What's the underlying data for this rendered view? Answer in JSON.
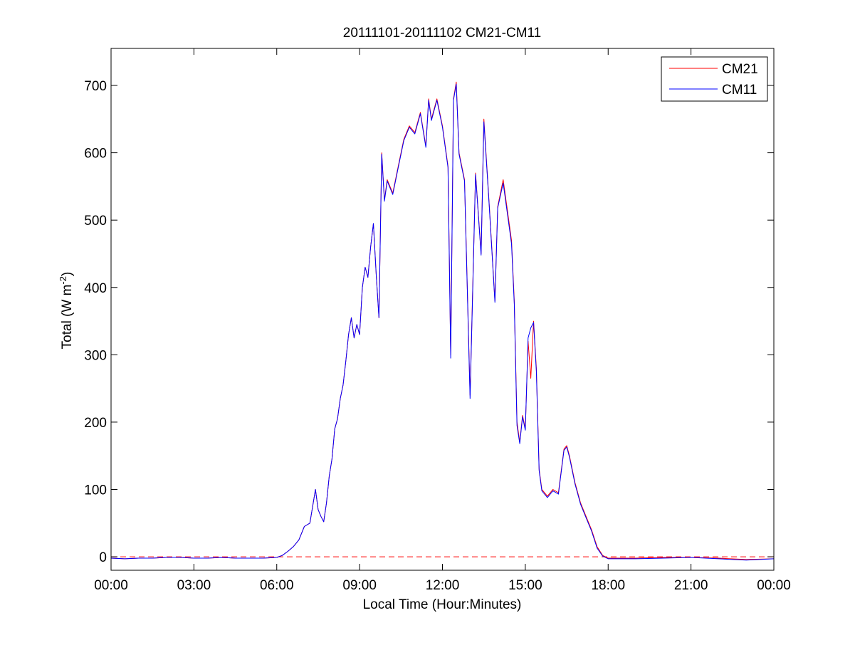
{
  "chart_data": {
    "type": "line",
    "title": "20111101-20111102 CM21-CM11",
    "xlabel": "Local Time (Hour:Minutes)",
    "ylabel_main": "Total (W m",
    "ylabel_sup": "-2",
    "ylabel_close": ")",
    "xlim_hours": [
      0,
      24
    ],
    "ylim": [
      -20,
      755
    ],
    "x_ticks": [
      {
        "hour": 0,
        "label": "00:00"
      },
      {
        "hour": 3,
        "label": "03:00"
      },
      {
        "hour": 6,
        "label": "06:00"
      },
      {
        "hour": 9,
        "label": "09:00"
      },
      {
        "hour": 12,
        "label": "12:00"
      },
      {
        "hour": 15,
        "label": "15:00"
      },
      {
        "hour": 18,
        "label": "18:00"
      },
      {
        "hour": 21,
        "label": "21:00"
      },
      {
        "hour": 24,
        "label": "00:00"
      }
    ],
    "y_ticks": [
      0,
      100,
      200,
      300,
      400,
      500,
      600,
      700
    ],
    "reference_line": {
      "y": 0,
      "color": "#ff0000",
      "style": "dashed"
    },
    "legend_position": "top-right",
    "grid": false,
    "series": [
      {
        "name": "CM21",
        "color": "#ff0000",
        "points": [
          [
            0,
            -2
          ],
          [
            0.5,
            -3
          ],
          [
            1,
            -2
          ],
          [
            1.5,
            -2
          ],
          [
            2,
            -1
          ],
          [
            2.5,
            -1
          ],
          [
            3,
            -2
          ],
          [
            3.5,
            -2
          ],
          [
            4,
            -1
          ],
          [
            4.5,
            -2
          ],
          [
            5,
            -2
          ],
          [
            5.5,
            -2
          ],
          [
            6,
            -1
          ],
          [
            6.2,
            2
          ],
          [
            6.4,
            8
          ],
          [
            6.6,
            15
          ],
          [
            6.8,
            25
          ],
          [
            7,
            45
          ],
          [
            7.2,
            50
          ],
          [
            7.4,
            100
          ],
          [
            7.5,
            70
          ],
          [
            7.6,
            60
          ],
          [
            7.7,
            52
          ],
          [
            7.8,
            80
          ],
          [
            7.9,
            120
          ],
          [
            8,
            145
          ],
          [
            8.1,
            190
          ],
          [
            8.2,
            205
          ],
          [
            8.3,
            235
          ],
          [
            8.4,
            255
          ],
          [
            8.5,
            290
          ],
          [
            8.6,
            330
          ],
          [
            8.7,
            355
          ],
          [
            8.8,
            325
          ],
          [
            8.9,
            345
          ],
          [
            9,
            330
          ],
          [
            9.1,
            400
          ],
          [
            9.2,
            430
          ],
          [
            9.3,
            415
          ],
          [
            9.4,
            460
          ],
          [
            9.5,
            495
          ],
          [
            9.6,
            420
          ],
          [
            9.7,
            355
          ],
          [
            9.8,
            600
          ],
          [
            9.9,
            530
          ],
          [
            10,
            560
          ],
          [
            10.2,
            540
          ],
          [
            10.4,
            580
          ],
          [
            10.6,
            620
          ],
          [
            10.8,
            640
          ],
          [
            11,
            630
          ],
          [
            11.2,
            660
          ],
          [
            11.4,
            610
          ],
          [
            11.5,
            680
          ],
          [
            11.6,
            650
          ],
          [
            11.8,
            680
          ],
          [
            12,
            640
          ],
          [
            12.2,
            580
          ],
          [
            12.3,
            300
          ],
          [
            12.4,
            680
          ],
          [
            12.5,
            705
          ],
          [
            12.6,
            600
          ],
          [
            12.8,
            560
          ],
          [
            13,
            240
          ],
          [
            13.2,
            570
          ],
          [
            13.4,
            450
          ],
          [
            13.5,
            650
          ],
          [
            13.7,
            520
          ],
          [
            13.9,
            380
          ],
          [
            14,
            520
          ],
          [
            14.2,
            560
          ],
          [
            14.4,
            500
          ],
          [
            14.5,
            470
          ],
          [
            14.6,
            380
          ],
          [
            14.7,
            200
          ],
          [
            14.8,
            170
          ],
          [
            14.9,
            210
          ],
          [
            15,
            190
          ],
          [
            15.1,
            320
          ],
          [
            15.2,
            265
          ],
          [
            15.3,
            350
          ],
          [
            15.4,
            280
          ],
          [
            15.5,
            130
          ],
          [
            15.6,
            100
          ],
          [
            15.8,
            90
          ],
          [
            16,
            100
          ],
          [
            16.2,
            95
          ],
          [
            16.4,
            160
          ],
          [
            16.5,
            165
          ],
          [
            16.6,
            150
          ],
          [
            16.8,
            110
          ],
          [
            17,
            80
          ],
          [
            17.2,
            60
          ],
          [
            17.4,
            40
          ],
          [
            17.6,
            15
          ],
          [
            17.8,
            2
          ],
          [
            18,
            -2
          ],
          [
            19,
            -2
          ],
          [
            20,
            -1
          ],
          [
            21,
            -1
          ],
          [
            22,
            -2
          ],
          [
            23,
            -4
          ],
          [
            24,
            -3
          ]
        ]
      },
      {
        "name": "CM11",
        "color": "#0000ff",
        "points": [
          [
            0,
            -2
          ],
          [
            0.5,
            -3
          ],
          [
            1,
            -2
          ],
          [
            1.5,
            -2
          ],
          [
            2,
            -1
          ],
          [
            2.5,
            -1
          ],
          [
            3,
            -2
          ],
          [
            3.5,
            -2
          ],
          [
            4,
            -1
          ],
          [
            4.5,
            -2
          ],
          [
            5,
            -2
          ],
          [
            5.5,
            -2
          ],
          [
            6,
            -1
          ],
          [
            6.2,
            2
          ],
          [
            6.4,
            8
          ],
          [
            6.6,
            15
          ],
          [
            6.8,
            25
          ],
          [
            7,
            45
          ],
          [
            7.2,
            50
          ],
          [
            7.4,
            100
          ],
          [
            7.5,
            70
          ],
          [
            7.6,
            60
          ],
          [
            7.7,
            52
          ],
          [
            7.8,
            80
          ],
          [
            7.9,
            120
          ],
          [
            8,
            145
          ],
          [
            8.1,
            190
          ],
          [
            8.2,
            205
          ],
          [
            8.3,
            235
          ],
          [
            8.4,
            255
          ],
          [
            8.5,
            290
          ],
          [
            8.6,
            330
          ],
          [
            8.7,
            355
          ],
          [
            8.8,
            325
          ],
          [
            8.9,
            345
          ],
          [
            9,
            330
          ],
          [
            9.1,
            400
          ],
          [
            9.2,
            430
          ],
          [
            9.3,
            415
          ],
          [
            9.4,
            460
          ],
          [
            9.5,
            495
          ],
          [
            9.6,
            420
          ],
          [
            9.7,
            355
          ],
          [
            9.8,
            598
          ],
          [
            9.9,
            528
          ],
          [
            10,
            558
          ],
          [
            10.2,
            538
          ],
          [
            10.4,
            578
          ],
          [
            10.6,
            618
          ],
          [
            10.8,
            638
          ],
          [
            11,
            628
          ],
          [
            11.2,
            658
          ],
          [
            11.4,
            608
          ],
          [
            11.5,
            678
          ],
          [
            11.6,
            648
          ],
          [
            11.8,
            678
          ],
          [
            12,
            638
          ],
          [
            12.2,
            578
          ],
          [
            12.3,
            295
          ],
          [
            12.4,
            678
          ],
          [
            12.5,
            702
          ],
          [
            12.6,
            598
          ],
          [
            12.8,
            558
          ],
          [
            13,
            235
          ],
          [
            13.2,
            568
          ],
          [
            13.4,
            448
          ],
          [
            13.5,
            646
          ],
          [
            13.7,
            518
          ],
          [
            13.9,
            378
          ],
          [
            14,
            518
          ],
          [
            14.2,
            555
          ],
          [
            14.4,
            495
          ],
          [
            14.5,
            465
          ],
          [
            14.6,
            375
          ],
          [
            14.7,
            195
          ],
          [
            14.8,
            168
          ],
          [
            14.9,
            208
          ],
          [
            15,
            188
          ],
          [
            15.1,
            325
          ],
          [
            15.2,
            340
          ],
          [
            15.3,
            348
          ],
          [
            15.4,
            275
          ],
          [
            15.5,
            128
          ],
          [
            15.6,
            98
          ],
          [
            15.8,
            88
          ],
          [
            16,
            98
          ],
          [
            16.2,
            93
          ],
          [
            16.4,
            158
          ],
          [
            16.5,
            163
          ],
          [
            16.6,
            148
          ],
          [
            16.8,
            108
          ],
          [
            17,
            78
          ],
          [
            17.2,
            58
          ],
          [
            17.4,
            38
          ],
          [
            17.6,
            13
          ],
          [
            17.8,
            1
          ],
          [
            18,
            -3
          ],
          [
            19,
            -3
          ],
          [
            20,
            -2
          ],
          [
            21,
            -1
          ],
          [
            22,
            -3
          ],
          [
            23,
            -5
          ],
          [
            24,
            -3
          ]
        ]
      }
    ]
  }
}
